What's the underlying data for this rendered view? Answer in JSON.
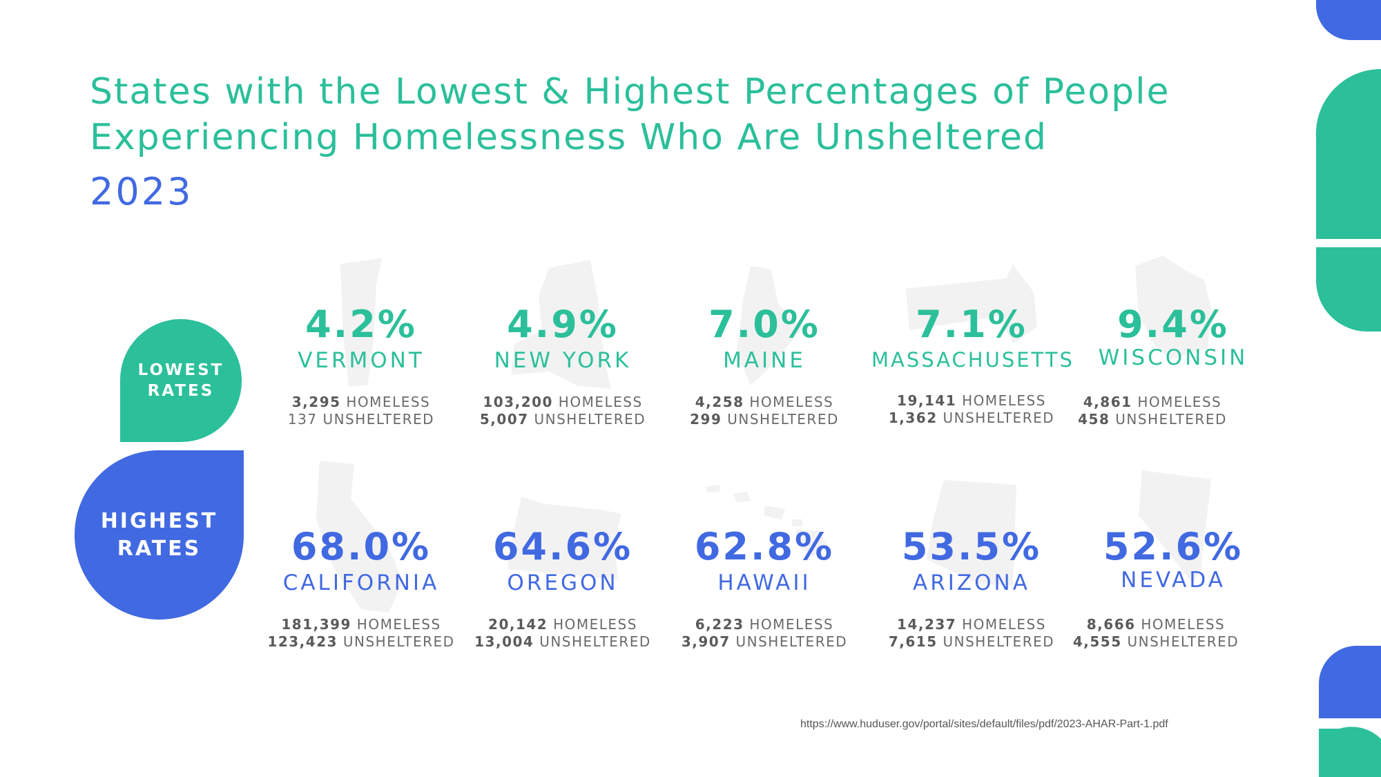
{
  "title": {
    "line1": "States with the Lowest & Highest Percentages of People",
    "line2": "Experiencing Homelessness Who Are Unsheltered",
    "year": "2023"
  },
  "badges": {
    "lowest": {
      "line1": "LOWEST",
      "line2": "RATES"
    },
    "highest": {
      "line1": "HIGHEST",
      "line2": "RATES"
    }
  },
  "lowest": [
    {
      "pct": "4.2%",
      "state": "VERMONT",
      "homeless": "3,295",
      "unsheltered": "137"
    },
    {
      "pct": "4.9%",
      "state": "NEW YORK",
      "homeless": "103,200",
      "unsheltered": "5,007"
    },
    {
      "pct": "7.0%",
      "state": "MAINE",
      "homeless": "4,258",
      "unsheltered": "299"
    },
    {
      "pct": "7.1%",
      "state": "MASSACHUSETTS",
      "homeless": "19,141",
      "unsheltered": "1,362"
    },
    {
      "pct": "9.4%",
      "state": "WISCONSIN",
      "homeless": "4,861",
      "unsheltered": "458"
    }
  ],
  "highest": [
    {
      "pct": "68.0%",
      "state": "CALIFORNIA",
      "homeless": "181,399",
      "unsheltered": "123,423"
    },
    {
      "pct": "64.6%",
      "state": "OREGON",
      "homeless": "20,142",
      "unsheltered": "13,004"
    },
    {
      "pct": "62.8%",
      "state": "HAWAII",
      "homeless": "6,223",
      "unsheltered": "3,907"
    },
    {
      "pct": "53.5%",
      "state": "ARIZONA",
      "homeless": "14,237",
      "unsheltered": "7,615"
    },
    {
      "pct": "52.6%",
      "state": "NEVADA",
      "homeless": "8,666",
      "unsheltered": "4,555"
    }
  ],
  "labels": {
    "homeless": "HOMELESS",
    "unsheltered": "UNSHELTERED"
  },
  "source": "https://www.huduser.gov/portal/sites/default/files/pdf/2023-AHAR-Part-1.pdf",
  "colors": {
    "green": "#2bbf9a",
    "blue": "#4169e1"
  }
}
